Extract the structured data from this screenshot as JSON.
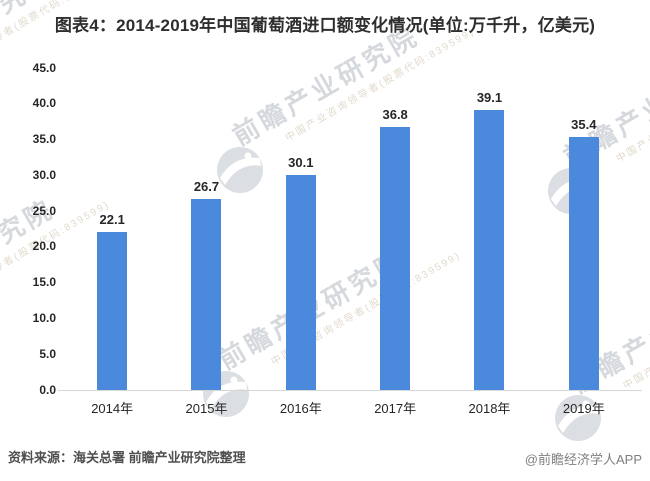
{
  "page_title": "图表4：2014-2019年中国葡萄酒进口额变化情况(单位:万千升，亿美元)",
  "chart_data": {
    "type": "bar",
    "title": "图表4：2014-2019年中国葡萄酒进口额变化情况(单位:万千升，亿美元)",
    "categories": [
      "2014年",
      "2015年",
      "2016年",
      "2017年",
      "2018年",
      "2019年"
    ],
    "values": [
      22.1,
      26.7,
      30.1,
      36.8,
      39.1,
      35.4
    ],
    "data_labels": [
      "22.1",
      "26.7",
      "30.1",
      "36.8",
      "39.1",
      "35.4"
    ],
    "xlabel": "",
    "ylabel": "",
    "ylim": [
      0,
      45
    ],
    "ytick_step": 5,
    "yticks": [
      "0.0",
      "5.0",
      "10.0",
      "15.0",
      "20.0",
      "25.0",
      "30.0",
      "35.0",
      "40.0",
      "45.0"
    ],
    "grid": false,
    "legend": "none",
    "bar_color": "#4a89dc"
  },
  "footer": {
    "source": "资料来源：海关总署 前瞻产业研究院整理",
    "credit": "@前瞻经济学人APP"
  },
  "watermark": {
    "main": "前瞻产业研究院",
    "sub": "中国产业咨询领导者(股票代码:839599)",
    "logo": "globe-icon"
  }
}
